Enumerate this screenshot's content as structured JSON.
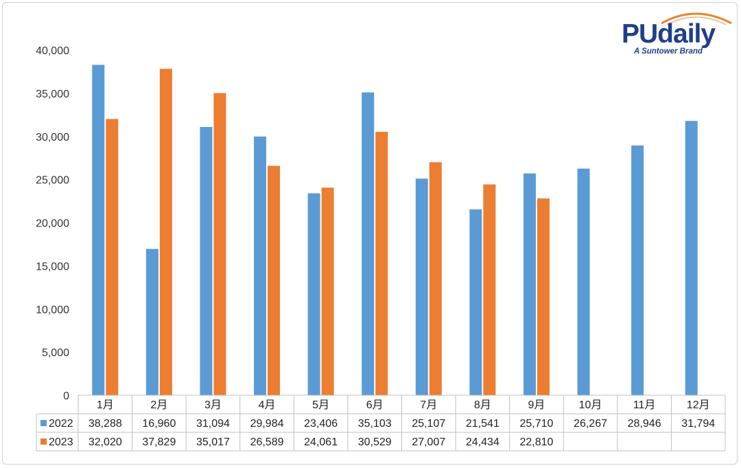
{
  "logo": {
    "name": "PUdaily",
    "tagline": "A Suntower Brand",
    "color": "#1f3e8c",
    "arc_color": "#e8832a"
  },
  "chart_data": {
    "type": "bar",
    "title": "",
    "xlabel": "",
    "ylabel": "",
    "ylim": [
      0,
      40000
    ],
    "yticks": [
      "0",
      "5,000",
      "10,000",
      "15,000",
      "20,000",
      "25,000",
      "30,000",
      "35,000",
      "40,000"
    ],
    "categories": [
      "1月",
      "2月",
      "3月",
      "4月",
      "5月",
      "6月",
      "7月",
      "8月",
      "9月",
      "10月",
      "11月",
      "12月"
    ],
    "series": [
      {
        "name": "2022",
        "color": "#5b9bd5",
        "values": [
          38288,
          16960,
          31094,
          29984,
          23406,
          35103,
          25107,
          21541,
          25710,
          26267,
          28946,
          31794
        ],
        "labels": [
          "38,288",
          "16,960",
          "31,094",
          "29,984",
          "23,406",
          "35,103",
          "25,107",
          "21,541",
          "25,710",
          "26,267",
          "28,946",
          "31,794"
        ]
      },
      {
        "name": "2023",
        "color": "#ed7d31",
        "values": [
          32020,
          37829,
          35017,
          26589,
          24061,
          30529,
          27007,
          24434,
          22810,
          null,
          null,
          null
        ],
        "labels": [
          "32,020",
          "37,829",
          "35,017",
          "26,589",
          "24,061",
          "30,529",
          "27,007",
          "24,434",
          "22,810",
          "",
          "",
          ""
        ]
      }
    ],
    "grid": false,
    "legend": "data-table-below"
  }
}
